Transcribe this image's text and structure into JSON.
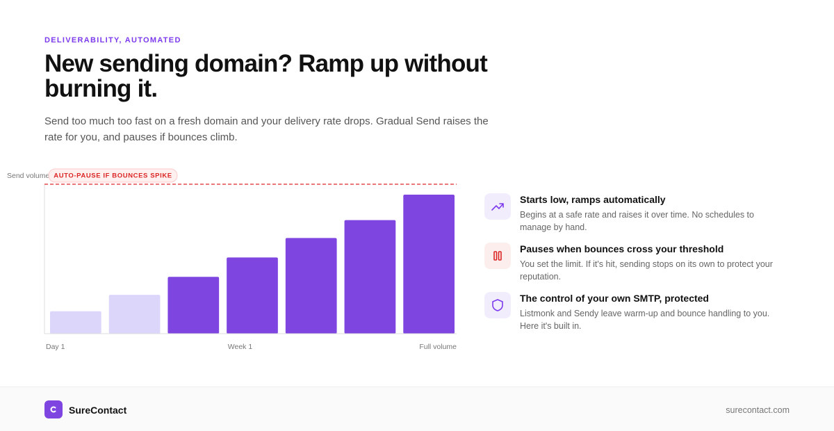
{
  "eyebrow": "DELIVERABILITY, AUTOMATED",
  "title": "New sending domain? Ramp up without burning it.",
  "description": "Send too much too fast on a fresh domain and your delivery rate drops. Gradual Send raises the rate for you, and pauses if bounces climb.",
  "chart_data": {
    "type": "bar",
    "y_label": "Send volume",
    "annotation": "AUTO-PAUSE IF BOUNCES SPIKE",
    "threshold": 100,
    "categories": [
      "Day 1",
      null,
      null,
      "Week 1",
      null,
      null,
      "Full volume"
    ],
    "values": [
      15,
      26,
      38,
      51,
      64,
      76,
      93
    ],
    "colors": [
      "#dcd6fb",
      "#dcd6fb",
      "#7f45e0",
      "#7f45e0",
      "#7f45e0",
      "#7f45e0",
      "#7f45e0"
    ],
    "threshold_color": "#dc2626",
    "ylim": [
      0,
      100
    ]
  },
  "features": [
    {
      "title": "Starts low, ramps automatically",
      "text": "Begins at a safe rate and raises it over time. No schedules to manage by hand."
    },
    {
      "title": "Pauses when bounces cross your threshold",
      "text": "You set the limit. If it's hit, sending stops on its own to protect your reputation."
    },
    {
      "title": "The control of your own SMTP, protected",
      "text": "Listmonk and Sendy leave warm-up and bounce handling to you. Here it's built in."
    }
  ],
  "footer": {
    "brand": "SureContact",
    "url": "surecontact.com"
  }
}
